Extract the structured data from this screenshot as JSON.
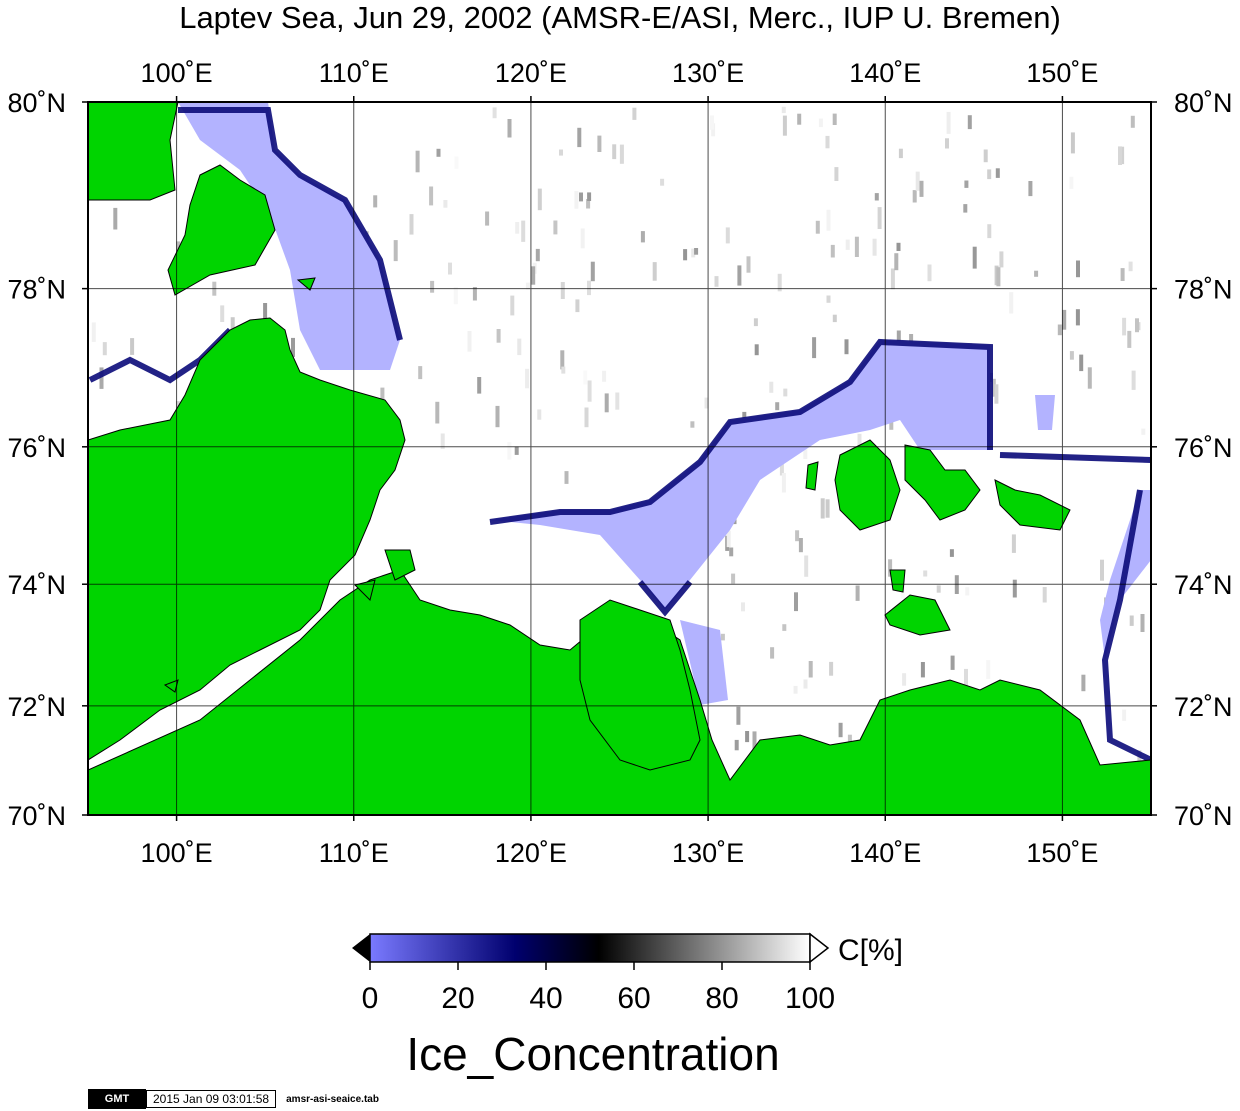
{
  "title": "Laptev Sea, Jun 29, 2002 (AMSR-E/ASI, Merc., IUP U. Bremen)",
  "map": {
    "projection": "Mercator",
    "lon_range": [
      95,
      155
    ],
    "lat_range": [
      70,
      80
    ],
    "lon_ticks": [
      100,
      110,
      120,
      130,
      140,
      150
    ],
    "lat_ticks": [
      70,
      72,
      74,
      76,
      78,
      80
    ],
    "lon_labels": [
      "100˚E",
      "110˚E",
      "120˚E",
      "130˚E",
      "140˚E",
      "150˚E"
    ],
    "lat_labels": [
      "70˚N",
      "72˚N",
      "74˚N",
      "76˚N",
      "78˚N",
      "80˚N"
    ],
    "gridlines": true,
    "land_color": "#00d400",
    "water_low_ice_color": "#b3b3ff"
  },
  "colorbar": {
    "label": "C[%]",
    "ticks": [
      "0",
      "20",
      "40",
      "60",
      "80",
      "100"
    ],
    "range": [
      0,
      100
    ],
    "stops": [
      "#7a7aff",
      "#00006e",
      "#000000",
      "#ffffff"
    ],
    "title": "Ice_Concentration"
  },
  "footer": {
    "logo": "GMT",
    "timestamp": "2015 Jan 09 03:01:58",
    "filename": "amsr-asi-seaice.tab"
  }
}
